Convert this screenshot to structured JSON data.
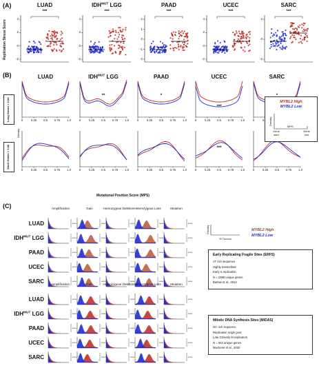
{
  "panels": {
    "a": {
      "label": "(A)",
      "ylabel": "Replication Stress Score",
      "cancers": [
        "LUAD",
        "IDH^MUT LGG",
        "PAAD",
        "UCEC",
        "SARC"
      ],
      "sig": "***",
      "y_ticks": [
        [
          "4",
          "2",
          "0",
          "-2"
        ],
        [
          "4",
          "2",
          "0",
          "-2"
        ],
        [
          "2",
          "1",
          "0",
          "-1",
          "-2"
        ],
        [
          "4",
          "2",
          "0",
          "-2"
        ],
        [
          "2",
          "0",
          "-2"
        ]
      ]
    },
    "b": {
      "label": "(B)",
      "cancers": [
        "LUAD",
        "IDH^MUT LGG",
        "PAAD",
        "UCEC",
        "SARC"
      ],
      "row_long": "Long Genes > 3 kb",
      "row_short": "Short Genes < 3 kb",
      "density": "Density",
      "xlabel": "Mutational Position Score (MPS)",
      "x_ticks": [
        "0",
        "0.25",
        "0.5",
        "0.75",
        "1.0"
      ],
      "marks_long": [
        "",
        "**",
        "*",
        "***",
        "*"
      ],
      "marks_short": [
        "",
        "",
        "",
        "***",
        ""
      ],
      "legend": {
        "high": "MYBL2 High",
        "low": "MYBL2 Low",
        "density": "Density",
        "mps": "MPS",
        "start": "Gene start",
        "end": "Gene end"
      }
    },
    "c": {
      "label": "(C)",
      "columns": [
        "Amplification",
        "Gain",
        "Homozygous Deletion",
        "Heterozygous Loss",
        "Mutation"
      ],
      "rows": [
        "LUAD",
        "IDH^MUT LGG",
        "PAAD",
        "UCEC",
        "SARC"
      ],
      "sig": "****",
      "legend": {
        "density": "Density",
        "tumors": "% Tumors",
        "high": "MYBL2 High",
        "low": "MYBL2 Low"
      },
      "box1": {
        "title": "Early Replicating Fragile Sites (ERFS)",
        "lines": [
          "AT rich sequence",
          "Highly transcribed",
          "Early S replication",
          "N = 2388 unique genes",
          "Barlow et al., 2013"
        ]
      },
      "box2": {
        "title": "Mitotic DNA Synthesis Sites (MiDAS)",
        "lines": [
          "GC rich sequence",
          "Replication origin poor",
          "Late G2/early M replication",
          "N = 342 unique genes",
          "Macheret et al., 2020"
        ]
      }
    }
  },
  "colors": {
    "high": "#c0261c",
    "low": "#1f2bd1",
    "mix": "#8a5a2a"
  }
}
